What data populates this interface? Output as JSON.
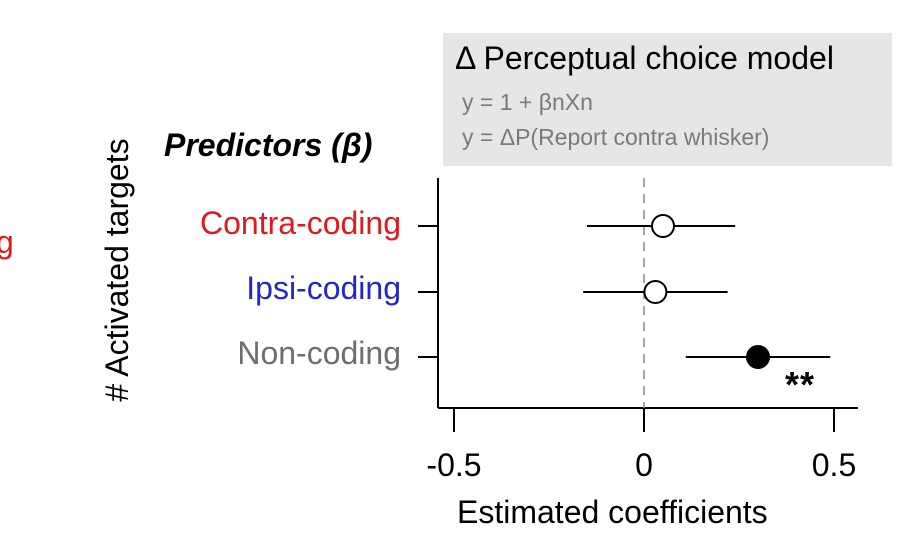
{
  "crop_fragment": "g",
  "chart_data": {
    "type": "scatter",
    "subtype": "dot-and-whisker",
    "title": "",
    "legend_box": {
      "title": "Δ Perceptual choice model",
      "equations": [
        "y = 1 + βnXn",
        "y = ΔP(Report contra whisker)"
      ],
      "placement": "top-right"
    },
    "predictors_title": "Predictors (β)",
    "ylabel": "# Activated targets",
    "xlabel": "Estimated coefficients",
    "xlim": [
      -0.5,
      0.5
    ],
    "xticks": [
      -0.5,
      0,
      0.5
    ],
    "xtick_labels": [
      "-0.5",
      "0",
      "0.5"
    ],
    "zero_reference_line": true,
    "categories": [
      {
        "label": "Contra-coding",
        "color": "#e0191d",
        "estimate": 0.05,
        "ci_low": -0.15,
        "ci_high": 0.24,
        "filled": false,
        "significance": ""
      },
      {
        "label": "Ipsi-coding",
        "color": "#2326c8",
        "estimate": 0.03,
        "ci_low": -0.16,
        "ci_high": 0.22,
        "filled": false,
        "significance": ""
      },
      {
        "label": "Non-coding",
        "color": "#6e6e6e",
        "estimate": 0.3,
        "ci_low": 0.11,
        "ci_high": 0.49,
        "filled": true,
        "significance": "**"
      }
    ]
  }
}
